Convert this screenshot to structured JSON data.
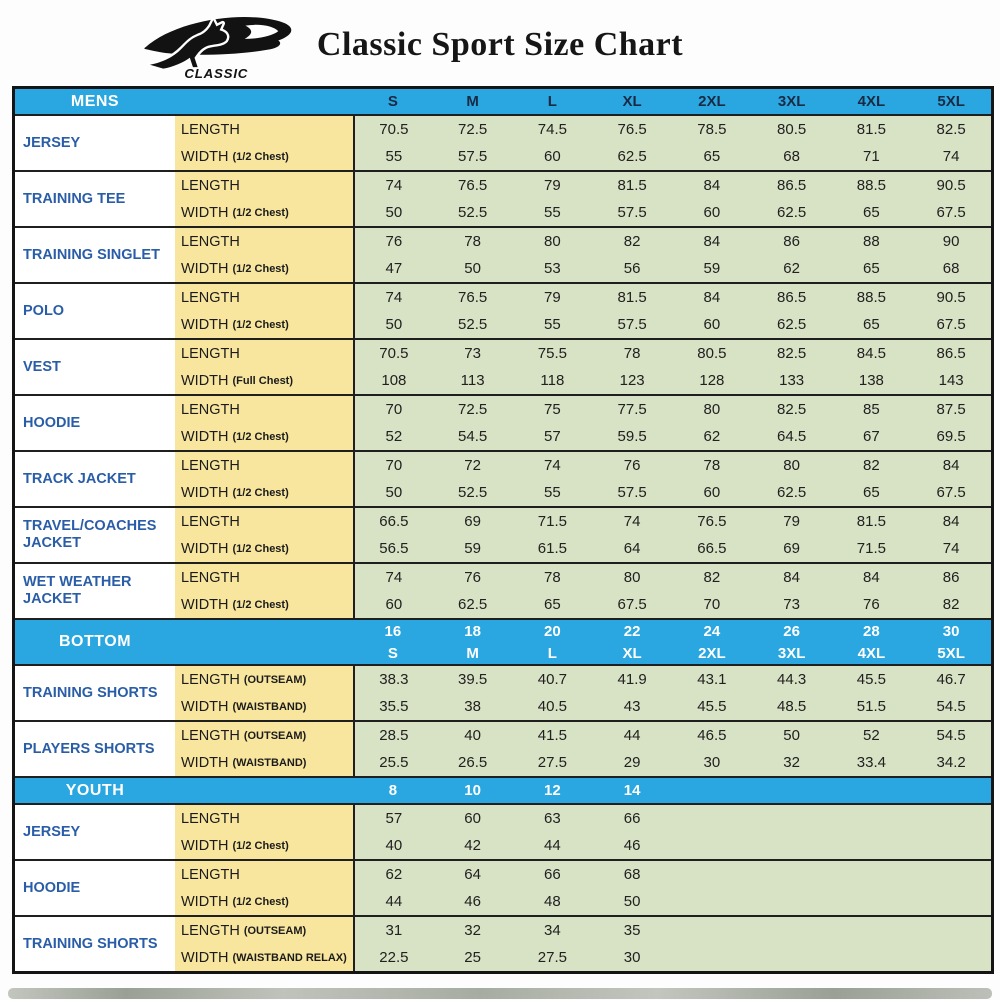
{
  "header": {
    "brand": "CLASSIC",
    "title": "Classic Sport Size Chart",
    "logo_icon": "kangaroo-swoosh-icon"
  },
  "colors": {
    "header_bg": "#2aa7e0",
    "label_bg": "#f8e69e",
    "value_bg": "#d8e2c4",
    "product_text": "#2a5da8",
    "mens_sizes_text": "#1b2a44",
    "light_sizes_text": "#ffffff",
    "border_dark": "#1a1a1a"
  },
  "sections": [
    {
      "id": "mens",
      "header": {
        "label": "MENS",
        "two_line": false,
        "columns": [
          "S",
          "M",
          "L",
          "XL",
          "2XL",
          "3XL",
          "4XL",
          "5XL"
        ],
        "sizes_text_color": "#1b2a44"
      },
      "products": [
        {
          "name": "JERSEY",
          "rows": [
            {
              "label": "LENGTH",
              "sub": "",
              "values": [
                "70.5",
                "72.5",
                "74.5",
                "76.5",
                "78.5",
                "80.5",
                "81.5",
                "82.5"
              ]
            },
            {
              "label": "WIDTH",
              "sub": "(1/2 Chest)",
              "values": [
                "55",
                "57.5",
                "60",
                "62.5",
                "65",
                "68",
                "71",
                "74"
              ]
            }
          ]
        },
        {
          "name": "TRAINING TEE",
          "rows": [
            {
              "label": "LENGTH",
              "sub": "",
              "values": [
                "74",
                "76.5",
                "79",
                "81.5",
                "84",
                "86.5",
                "88.5",
                "90.5"
              ]
            },
            {
              "label": "WIDTH",
              "sub": "(1/2 Chest)",
              "values": [
                "50",
                "52.5",
                "55",
                "57.5",
                "60",
                "62.5",
                "65",
                "67.5"
              ]
            }
          ]
        },
        {
          "name": "TRAINING SINGLET",
          "rows": [
            {
              "label": "LENGTH",
              "sub": "",
              "values": [
                "76",
                "78",
                "80",
                "82",
                "84",
                "86",
                "88",
                "90"
              ]
            },
            {
              "label": "WIDTH",
              "sub": "(1/2 Chest)",
              "values": [
                "47",
                "50",
                "53",
                "56",
                "59",
                "62",
                "65",
                "68"
              ]
            }
          ]
        },
        {
          "name": "POLO",
          "rows": [
            {
              "label": "LENGTH",
              "sub": "",
              "values": [
                "74",
                "76.5",
                "79",
                "81.5",
                "84",
                "86.5",
                "88.5",
                "90.5"
              ]
            },
            {
              "label": "WIDTH",
              "sub": "(1/2 Chest)",
              "values": [
                "50",
                "52.5",
                "55",
                "57.5",
                "60",
                "62.5",
                "65",
                "67.5"
              ]
            }
          ]
        },
        {
          "name": "VEST",
          "rows": [
            {
              "label": "LENGTH",
              "sub": "",
              "values": [
                "70.5",
                "73",
                "75.5",
                "78",
                "80.5",
                "82.5",
                "84.5",
                "86.5"
              ]
            },
            {
              "label": "WIDTH",
              "sub": "(Full Chest)",
              "values": [
                "108",
                "113",
                "118",
                "123",
                "128",
                "133",
                "138",
                "143"
              ]
            }
          ]
        },
        {
          "name": "HOODIE",
          "rows": [
            {
              "label": "LENGTH",
              "sub": "",
              "values": [
                "70",
                "72.5",
                "75",
                "77.5",
                "80",
                "82.5",
                "85",
                "87.5"
              ]
            },
            {
              "label": "WIDTH",
              "sub": "(1/2 Chest)",
              "values": [
                "52",
                "54.5",
                "57",
                "59.5",
                "62",
                "64.5",
                "67",
                "69.5"
              ]
            }
          ]
        },
        {
          "name": "TRACK JACKET",
          "rows": [
            {
              "label": "LENGTH",
              "sub": "",
              "values": [
                "70",
                "72",
                "74",
                "76",
                "78",
                "80",
                "82",
                "84"
              ]
            },
            {
              "label": "WIDTH",
              "sub": "(1/2 Chest)",
              "values": [
                "50",
                "52.5",
                "55",
                "57.5",
                "60",
                "62.5",
                "65",
                "67.5"
              ]
            }
          ]
        },
        {
          "name": "TRAVEL/COACHES JACKET",
          "rows": [
            {
              "label": "LENGTH",
              "sub": "",
              "values": [
                "66.5",
                "69",
                "71.5",
                "74",
                "76.5",
                "79",
                "81.5",
                "84"
              ]
            },
            {
              "label": "WIDTH",
              "sub": "(1/2 Chest)",
              "values": [
                "56.5",
                "59",
                "61.5",
                "64",
                "66.5",
                "69",
                "71.5",
                "74"
              ]
            }
          ]
        },
        {
          "name": "WET WEATHER JACKET",
          "rows": [
            {
              "label": "LENGTH",
              "sub": "",
              "values": [
                "74",
                "76",
                "78",
                "80",
                "82",
                "84",
                "84",
                "86"
              ]
            },
            {
              "label": "WIDTH",
              "sub": "(1/2 Chest)",
              "values": [
                "60",
                "62.5",
                "65",
                "67.5",
                "70",
                "73",
                "76",
                "82"
              ]
            }
          ]
        }
      ]
    },
    {
      "id": "bottom",
      "header": {
        "label": "BOTTOM",
        "two_line": true,
        "columns_top": [
          "16",
          "18",
          "20",
          "22",
          "24",
          "26",
          "28",
          "30"
        ],
        "columns_bottom": [
          "S",
          "M",
          "L",
          "XL",
          "2XL",
          "3XL",
          "4XL",
          "5XL"
        ],
        "sizes_text_color": "#ffffff"
      },
      "products": [
        {
          "name": "TRAINING SHORTS",
          "rows": [
            {
              "label": "LENGTH",
              "sub": "(OUTSEAM)",
              "values": [
                "38.3",
                "39.5",
                "40.7",
                "41.9",
                "43.1",
                "44.3",
                "45.5",
                "46.7"
              ]
            },
            {
              "label": "WIDTH",
              "sub": "(WAISTBAND)",
              "values": [
                "35.5",
                "38",
                "40.5",
                "43",
                "45.5",
                "48.5",
                "51.5",
                "54.5"
              ]
            }
          ]
        },
        {
          "name": "PLAYERS SHORTS",
          "rows": [
            {
              "label": "LENGTH",
              "sub": "(OUTSEAM)",
              "values": [
                "28.5",
                "40",
                "41.5",
                "44",
                "46.5",
                "50",
                "52",
                "54.5"
              ]
            },
            {
              "label": "WIDTH",
              "sub": "(WAISTBAND)",
              "values": [
                "25.5",
                "26.5",
                "27.5",
                "29",
                "30",
                "32",
                "33.4",
                "34.2"
              ]
            }
          ]
        }
      ]
    },
    {
      "id": "youth",
      "header": {
        "label": "YOUTH",
        "two_line": false,
        "columns": [
          "8",
          "10",
          "12",
          "14",
          "",
          "",
          "",
          ""
        ],
        "sizes_text_color": "#ffffff"
      },
      "products": [
        {
          "name": "JERSEY",
          "rows": [
            {
              "label": "LENGTH",
              "sub": "",
              "values": [
                "57",
                "60",
                "63",
                "66"
              ]
            },
            {
              "label": "WIDTH",
              "sub": "(1/2 Chest)",
              "values": [
                "40",
                "42",
                "44",
                "46"
              ]
            }
          ]
        },
        {
          "name": "HOODIE",
          "rows": [
            {
              "label": "LENGTH",
              "sub": "",
              "values": [
                "62",
                "64",
                "66",
                "68"
              ]
            },
            {
              "label": "WIDTH",
              "sub": "(1/2 Chest)",
              "values": [
                "44",
                "46",
                "48",
                "50"
              ]
            }
          ]
        },
        {
          "name": "TRAINING SHORTS",
          "rows": [
            {
              "label": "LENGTH",
              "sub": "(OUTSEAM)",
              "values": [
                "31",
                "32",
                "34",
                "35"
              ]
            },
            {
              "label": "WIDTH",
              "sub": "(WAISTBAND RELAX)",
              "values": [
                "22.5",
                "25",
                "27.5",
                "30"
              ]
            }
          ]
        }
      ]
    }
  ]
}
